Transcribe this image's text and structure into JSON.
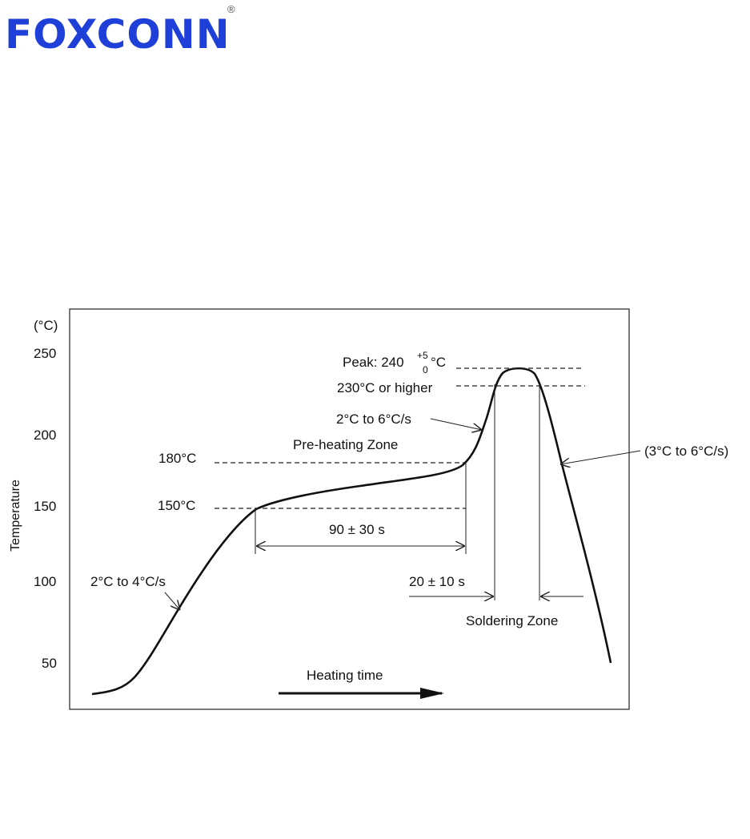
{
  "logo": {
    "text": "FOXCONN",
    "mark": "®"
  },
  "diagram": {
    "unit": "(°C)",
    "y_labels": [
      "250",
      "200",
      "150",
      "100",
      "50"
    ],
    "y_axis_title": "Temperature",
    "peak": {
      "text": "Peak: 240",
      "upper": "+5",
      "lower": "0",
      "unit": "°C"
    },
    "annotations": {
      "above_230": "230°C or higher",
      "ramp_up": "2°C to 6°C/s",
      "preheat_zone": "Pre-heating Zone",
      "t180": "180°C",
      "t150": "150°C",
      "preheat_time": "90 ± 30 s",
      "initial_ramp": "2°C to 4°C/s",
      "solder_time": "20 ± 10 s",
      "solder_zone": "Soldering Zone",
      "cool_down": "(3°C to 6°C/s)",
      "x_axis": "Heating time"
    }
  }
}
